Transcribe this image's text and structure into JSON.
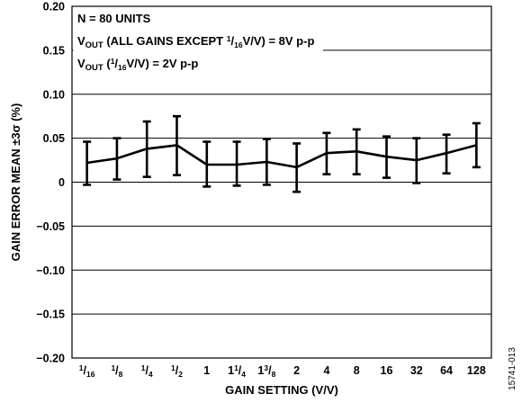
{
  "chart_data": {
    "type": "line",
    "xlabel": "GAIN SETTING (V/V)",
    "ylabel": "GAIN ERROR MEAN ±3σ (%)",
    "ylim": [
      -0.2,
      0.2
    ],
    "y_ticks": [
      "0.20",
      "0.15",
      "0.10",
      "0.05",
      "0",
      "−0.05",
      "−0.10",
      "−0.15",
      "−0.20"
    ],
    "grid": "horizontal",
    "categories": [
      "1/16",
      "1/8",
      "1/4",
      "1/2",
      "1",
      "1 1/4",
      "1 3/8",
      "2",
      "4",
      "8",
      "16",
      "32",
      "64",
      "128"
    ],
    "tick_labels": [
      {
        "whole": "",
        "num": "1",
        "den": "16"
      },
      {
        "whole": "",
        "num": "1",
        "den": "8"
      },
      {
        "whole": "",
        "num": "1",
        "den": "4"
      },
      {
        "whole": "",
        "num": "1",
        "den": "2"
      },
      {
        "whole": "1",
        "num": "",
        "den": ""
      },
      {
        "whole": "1",
        "num": "1",
        "den": "4"
      },
      {
        "whole": "1",
        "num": "3",
        "den": "8"
      },
      {
        "whole": "2",
        "num": "",
        "den": ""
      },
      {
        "whole": "4",
        "num": "",
        "den": ""
      },
      {
        "whole": "8",
        "num": "",
        "den": ""
      },
      {
        "whole": "16",
        "num": "",
        "den": ""
      },
      {
        "whole": "32",
        "num": "",
        "den": ""
      },
      {
        "whole": "64",
        "num": "",
        "den": ""
      },
      {
        "whole": "128",
        "num": "",
        "den": ""
      }
    ],
    "series": [
      {
        "values": [
          0.022,
          0.027,
          0.038,
          0.042,
          0.02,
          0.02,
          0.023,
          0.017,
          0.033,
          0.035,
          0.029,
          0.025,
          0.033,
          0.042
        ],
        "upper": [
          0.046,
          0.05,
          0.069,
          0.075,
          0.046,
          0.046,
          0.049,
          0.044,
          0.056,
          0.06,
          0.052,
          0.05,
          0.054,
          0.067
        ],
        "lower": [
          -0.003,
          0.003,
          0.006,
          0.008,
          -0.005,
          -0.004,
          -0.003,
          -0.011,
          0.009,
          0.009,
          0.005,
          -0.001,
          0.01,
          0.017
        ]
      }
    ],
    "annotations": {
      "line1": "N = 80 UNITS",
      "line2": {
        "prefix": "V",
        "sub": "OUT",
        "pre": " (ALL GAINS EXCEPT ",
        "num": "1",
        "den": "16",
        "post": "V/V) = 8V p-p"
      },
      "line3": {
        "prefix": "V",
        "sub": "OUT",
        "pre": " (",
        "num": "1",
        "den": "16",
        "post": "V/V) = 2V p-p"
      }
    },
    "figure_id": "15741-013"
  }
}
